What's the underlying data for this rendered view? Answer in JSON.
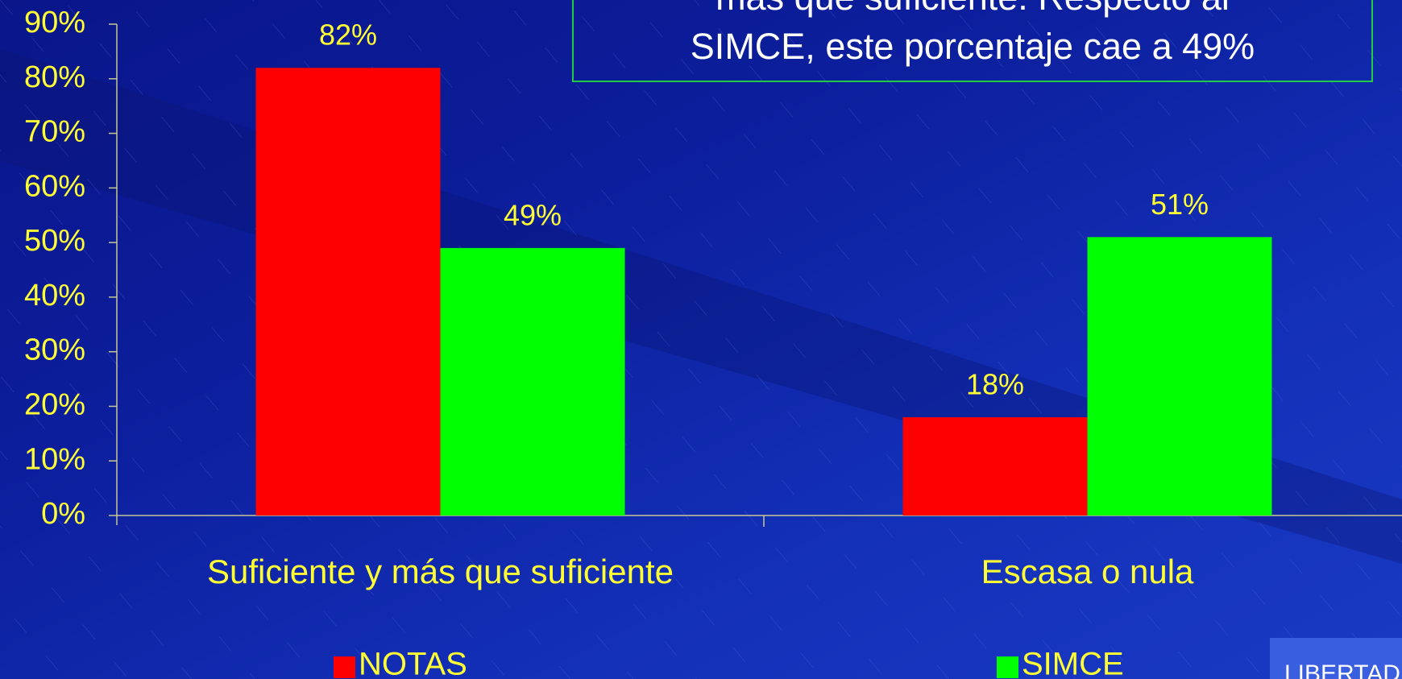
{
  "chart_data": {
    "type": "bar",
    "categories": [
      "Suficiente y más que suficiente",
      "Escasa o nula"
    ],
    "series": [
      {
        "name": "NOTAS",
        "color": "#ff0000",
        "values": [
          82,
          18
        ],
        "value_labels": [
          "82%",
          "18%"
        ]
      },
      {
        "name": "SIMCE",
        "color": "#00ff00",
        "values": [
          49,
          51
        ],
        "value_labels": [
          "49%",
          "51%"
        ]
      }
    ],
    "ylim": [
      0,
      90
    ],
    "yticks": [
      {
        "value": 0,
        "label": "0%"
      },
      {
        "value": 10,
        "label": "10%"
      },
      {
        "value": 20,
        "label": "20%"
      },
      {
        "value": 30,
        "label": "30%"
      },
      {
        "value": 40,
        "label": "40%"
      },
      {
        "value": 50,
        "label": "50%"
      },
      {
        "value": 60,
        "label": "60%"
      },
      {
        "value": 70,
        "label": "70%"
      },
      {
        "value": 80,
        "label": "80%"
      },
      {
        "value": 90,
        "label": "90%"
      }
    ],
    "annotation": [
      "más que suficiente. Respecto al",
      "SIMCE, este porcentaje cae a 49%"
    ],
    "logo_text": "LIBERTAD",
    "legend": "bottom"
  }
}
